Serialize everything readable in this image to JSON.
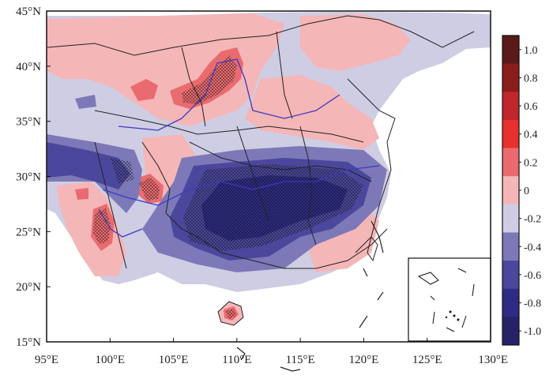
{
  "map": {
    "lat_labels": [
      "45°N",
      "40°N",
      "35°N",
      "30°N",
      "25°N",
      "20°N",
      "15°N"
    ],
    "lon_labels": [
      "95°E",
      "100°E",
      "105°E",
      "110°E",
      "115°E",
      "120°E",
      "125°E",
      "130°E"
    ]
  },
  "colorbar": {
    "labels": [
      "1.0",
      "0.8",
      "0.6",
      "0.4",
      "0.2",
      "0",
      "-0.2",
      "-0.4",
      "-0.6",
      "-0.8",
      "-1.0"
    ],
    "colors": [
      "#5a1a1a",
      "#8b1c1c",
      "#c0272d",
      "#e8312f",
      "#ea6b6f",
      "#f5b6b8",
      "#cfcde3",
      "#7d79b8",
      "#4b479c",
      "#2e2b85",
      "#252268"
    ]
  }
}
